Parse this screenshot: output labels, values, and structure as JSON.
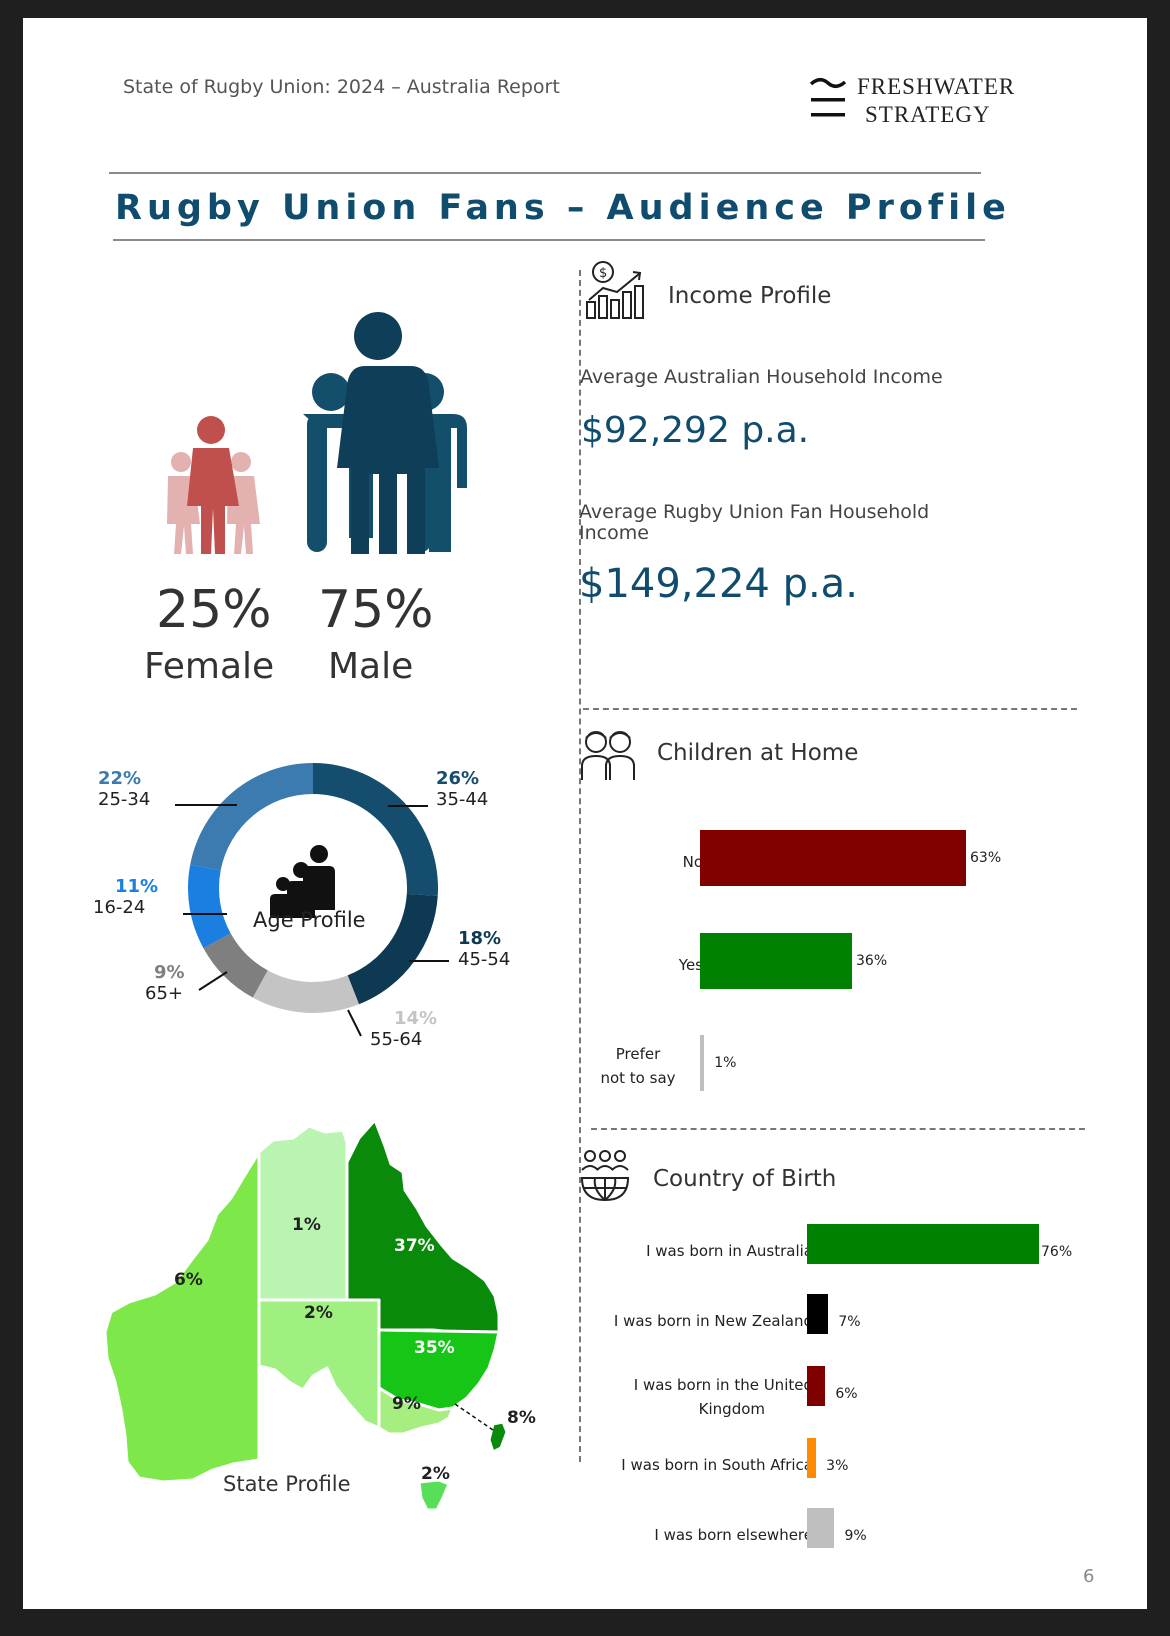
{
  "header": {
    "report_title": "State of Rugby Union: 2024 – Australia Report",
    "logo_line1": "FRESHWATER",
    "logo_line2": "STRATEGY"
  },
  "main_title": "Rugby Union Fans – Audience Profile",
  "gender": {
    "female_pct": "25%",
    "female_label": "Female",
    "male_pct": "75%",
    "male_label": "Male",
    "female_color": "#c0504d",
    "male_color": "#0f3f58"
  },
  "age_profile": {
    "title": "Age Profile",
    "segments": [
      {
        "pct": "22%",
        "range": "25-34",
        "color": "#3c7bb0"
      },
      {
        "pct": "26%",
        "range": "35-44",
        "color": "#144d6e"
      },
      {
        "pct": "18%",
        "range": "45-54",
        "color": "#0d3a52"
      },
      {
        "pct": "14%",
        "range": "55-64",
        "color": "#c4c4c4"
      },
      {
        "pct": "9%",
        "range": "65+",
        "color": "#7f7f7f"
      },
      {
        "pct": "11%",
        "range": "16-24",
        "color": "#1a7fe0"
      }
    ]
  },
  "income": {
    "title": "Income Profile",
    "avg_aus_label": "Average Australian Household Income",
    "avg_aus_value": "$92,292 p.a.",
    "avg_fan_label": "Average Rugby Union Fan Household Income",
    "avg_fan_value": "$149,224 p.a."
  },
  "children": {
    "title": "Children at Home",
    "no_label": "No",
    "yes_label": "Yes",
    "prefer_label_1": "Prefer",
    "prefer_label_2": "not to say",
    "no_value_text": "63%",
    "yes_value_text": "36%",
    "prefer_value_text": "1%"
  },
  "country": {
    "title": "Country of Birth",
    "aus_label": "I was born in Australia",
    "nz_label": "I was born in New Zealand",
    "uk_label_1": "I was born in the United",
    "uk_label_2": "Kingdom",
    "sa_label": "I was born in South Africa",
    "else_label": "I was born elsewhere",
    "aus_value_text": "76%",
    "nz_value_text": "7%",
    "uk_value_text": "6%",
    "sa_value_text": "3%",
    "else_value_text": "9%"
  },
  "state_profile": {
    "title": "State Profile",
    "wa": "6%",
    "nt": "1%",
    "qld": "37%",
    "sa": "2%",
    "nsw": "35%",
    "vic": "9%",
    "act": "8%",
    "tas": "2%"
  },
  "page_number": "6",
  "chart_data": [
    {
      "type": "pie",
      "title": "Age Profile",
      "categories": [
        "25-34",
        "35-44",
        "45-54",
        "55-64",
        "65+",
        "16-24"
      ],
      "values": [
        22,
        26,
        18,
        14,
        9,
        11
      ]
    },
    {
      "type": "bar",
      "title": "Children at Home",
      "categories": [
        "No",
        "Yes",
        "Prefer not to say"
      ],
      "values": [
        63,
        36,
        1
      ],
      "colors": [
        "#800000",
        "#008000",
        "#bfbfbf"
      ]
    },
    {
      "type": "bar",
      "title": "Country of Birth",
      "categories": [
        "I was born in Australia",
        "I was born in New Zealand",
        "I was born in the United Kingdom",
        "I was born in South Africa",
        "I was born elsewhere"
      ],
      "values": [
        76,
        7,
        6,
        3,
        9
      ],
      "colors": [
        "#008000",
        "#000000",
        "#800000",
        "#ff8c00",
        "#bfbfbf"
      ]
    }
  ]
}
